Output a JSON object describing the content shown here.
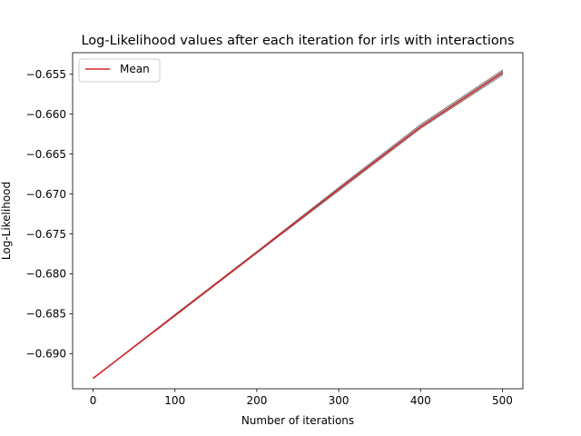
{
  "chart_data": {
    "type": "line",
    "title": "Log-Likelihood values after each iteration for irls with interactions",
    "xlabel": "Number of iterations",
    "ylabel": "Log-Likelihood",
    "xlim": [
      -25,
      525
    ],
    "ylim": [
      -0.6944,
      -0.6523
    ],
    "xticks": [
      0,
      100,
      200,
      300,
      400,
      500
    ],
    "xtick_labels": [
      "0",
      "100",
      "200",
      "300",
      "400",
      "500"
    ],
    "yticks": [
      -0.69,
      -0.685,
      -0.68,
      -0.675,
      -0.67,
      -0.665,
      -0.66,
      -0.655
    ],
    "ytick_labels": [
      "−0.690",
      "−0.685",
      "−0.680",
      "−0.675",
      "−0.670",
      "−0.665",
      "−0.660",
      "−0.655"
    ],
    "grid": false,
    "legend": {
      "placement": "top-left",
      "entries": [
        "Mean"
      ]
    },
    "series": [
      {
        "name": "Mean",
        "color": "#d62728",
        "x": [
          0,
          100,
          200,
          300,
          400,
          500
        ],
        "y": [
          -0.6931,
          -0.6852,
          -0.6773,
          -0.6694,
          -0.6616,
          -0.6548
        ]
      }
    ],
    "band": {
      "color": "#808080",
      "x": [
        0,
        100,
        200,
        300,
        400,
        500
      ],
      "lower": [
        -0.6931,
        -0.6853,
        -0.6774,
        -0.6696,
        -0.6618,
        -0.6551
      ],
      "upper": [
        -0.6931,
        -0.6851,
        -0.6772,
        -0.6692,
        -0.6613,
        -0.6545
      ]
    }
  }
}
